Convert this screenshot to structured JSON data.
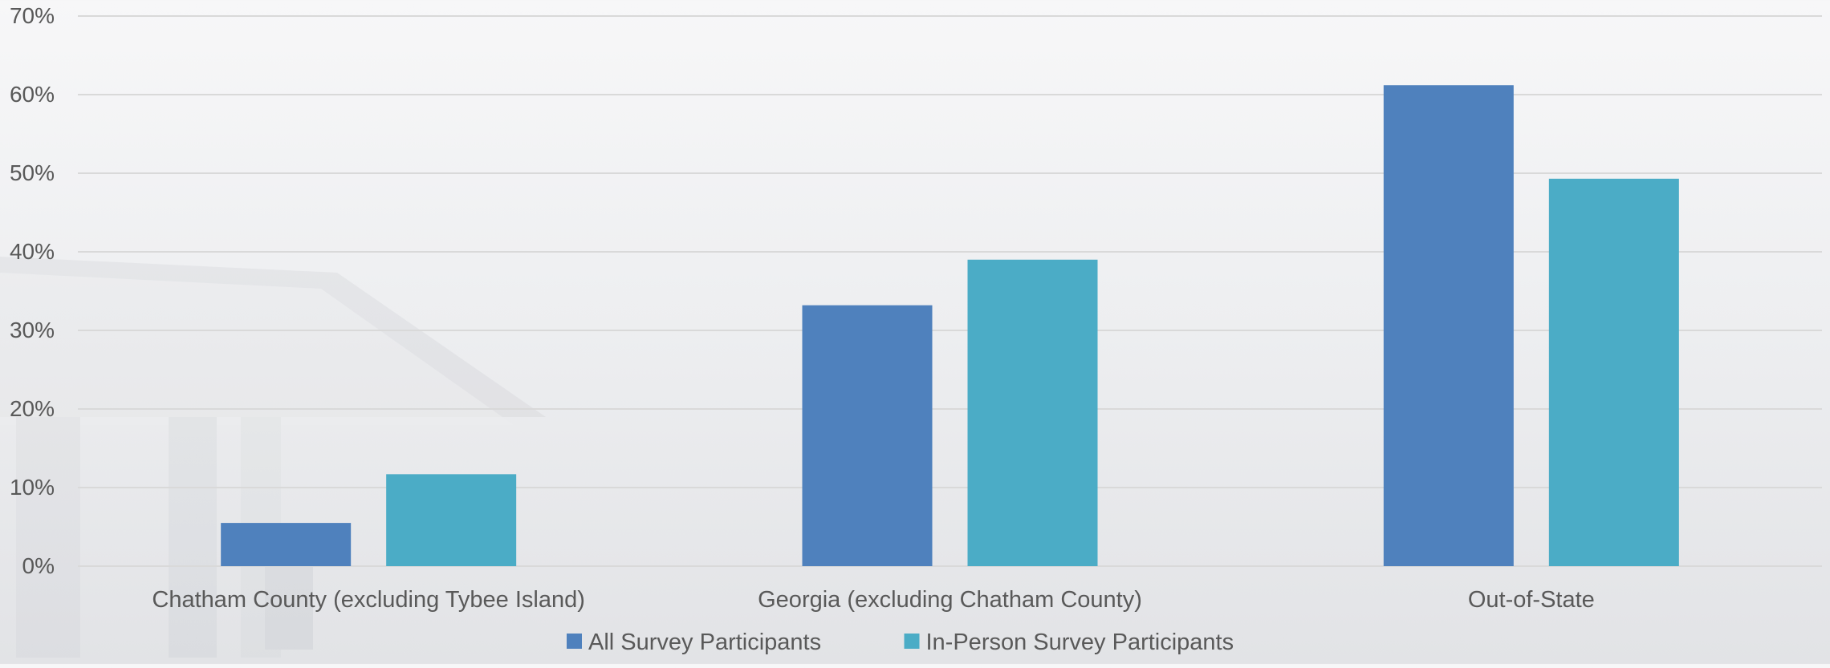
{
  "chart_data": {
    "type": "bar",
    "categories": [
      "Chatham County (excluding Tybee Island)",
      "Georgia (excluding Chatham County)",
      "Out-of-State"
    ],
    "series": [
      {
        "name": "All Survey Participants",
        "values": [
          5.5,
          33.2,
          61.2
        ],
        "color": "#4f81bd"
      },
      {
        "name": "In-Person Survey Participants",
        "values": [
          11.7,
          39.0,
          49.3
        ],
        "color": "#4bacc6"
      }
    ],
    "y_ticks": [
      "0%",
      "10%",
      "20%",
      "30%",
      "40%",
      "50%",
      "60%",
      "70%"
    ],
    "ylim": [
      0,
      70
    ],
    "y_unit": "%",
    "title": "",
    "xlabel": "",
    "ylabel": "",
    "grid": true,
    "legend_position": "bottom",
    "colors": {
      "gridline": "#d9d9d9",
      "text": "#595959"
    }
  }
}
